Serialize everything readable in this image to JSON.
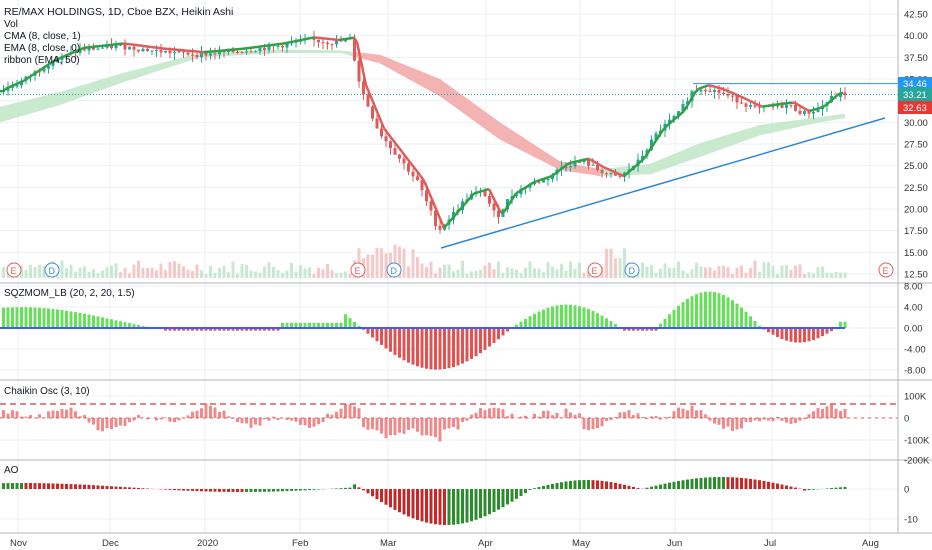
{
  "colors": {
    "up": "#26a69a",
    "up_bright": "#2ea043",
    "down": "#e05a5a",
    "ema_line": "#e05a5a",
    "cma_line": "#2ea043",
    "trend": "#2b86d9",
    "grid": "#eceff4",
    "sep": "#b2b5be",
    "squeeze_green": "#66e05a",
    "squeeze_red": "#e35151",
    "chaikin": "#f08a8a",
    "ao_green": "#2a8c2a",
    "ao_red": "#c62828",
    "vol_up": "#c8e8d2",
    "vol_down": "#f6c9c9",
    "event_e": "#e06060",
    "event_d": "#3d8fd6"
  },
  "main": {
    "title": "RE/MAX HOLDINGS, 1D, Cboe BZX, Heikin Ashi",
    "legend": [
      "Vol",
      "CMA (8, close, 1)",
      "EMA (8, close, 0)",
      "ribbon (EMA, 50)"
    ],
    "y_ticks": [
      "42.50",
      "40.00",
      "37.50",
      "35.00",
      "32.50",
      "30.00",
      "27.50",
      "25.00",
      "22.50",
      "20.00",
      "17.50",
      "15.00",
      "12.50"
    ],
    "price_badges": [
      {
        "value": "34.46",
        "color": "#2196f3"
      },
      {
        "value": "33.21",
        "color": "#26a69a"
      },
      {
        "value": "32.63",
        "color": "#e53935"
      }
    ],
    "events": [
      "E",
      "D",
      "E",
      "D",
      "E",
      "D",
      "E"
    ]
  },
  "squeeze": {
    "title": "SQZMOM_LB (20, 2, 20, 1.5)",
    "y_ticks": [
      "8.00",
      "4.00",
      "0.00",
      "-4.00",
      "-8.00"
    ]
  },
  "chaikin": {
    "title": "Chaikin Osc (3, 10)",
    "y_ticks": [
      "100K",
      "0",
      "-100K",
      "-200K"
    ]
  },
  "ao": {
    "title": "AO",
    "y_ticks": [
      "0",
      "-10"
    ]
  },
  "x_labels": [
    "Nov",
    "Dec",
    "2020",
    "Feb",
    "Mar",
    "Apr",
    "May",
    "Jun",
    "Jul",
    "Aug"
  ],
  "chart_data": {
    "type": "candlestick",
    "subtype": "Heikin Ashi",
    "symbol": "RE/MAX HOLDINGS",
    "interval": "1D",
    "ylim": [
      12.5,
      42.5
    ],
    "close_approx": [
      {
        "x": "Nov",
        "y": 35.0
      },
      {
        "x": "Dec",
        "y": 38.2
      },
      {
        "x": "2020",
        "y": 37.7
      },
      {
        "x": "Feb",
        "y": 38.8
      },
      {
        "x": "Mar",
        "y": 30.0
      },
      {
        "x": "Mar-mid",
        "y": 16.0
      },
      {
        "x": "Apr",
        "y": 21.5
      },
      {
        "x": "May",
        "y": 24.5
      },
      {
        "x": "Jun",
        "y": 33.0
      },
      {
        "x": "Jul",
        "y": 31.0
      },
      {
        "x": "Jul-end",
        "y": 33.2
      }
    ],
    "last_values": {
      "resistance": 34.46,
      "close": 33.21,
      "ema": 32.63
    }
  }
}
